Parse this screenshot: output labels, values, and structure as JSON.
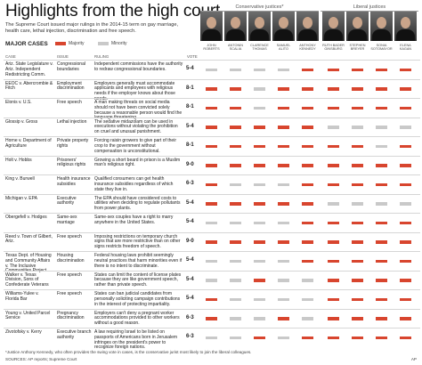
{
  "title": "Highlights from the high court",
  "subtitle": "The Supreme Court issued major rulings in the 2014-15 term on gay marriage, health care, lethal injection, discrimination and free speech.",
  "justices": {
    "conservative_label": "Conservative justices*",
    "liberal_label": "Liberal justices",
    "names": [
      "JOHN ROBERTS",
      "ANTONIN SCALIA",
      "CLARENCE THOMAS",
      "SAMUEL ALITO",
      "ANTHONY KENNEDY",
      "RUTH BADER GINSBURG",
      "STEPHEN BREYER",
      "SONIA SOTOMAYOR",
      "ELENA KAGAN"
    ]
  },
  "legend": {
    "heading": "MAJOR CASES",
    "items": [
      {
        "label": "Majority",
        "color": "#d8452e"
      },
      {
        "label": "Minority",
        "color": "#c9c9c9"
      }
    ]
  },
  "columns": [
    "CASE",
    "ISSUE",
    "RULING",
    "VOTE"
  ],
  "cases": [
    {
      "case": "Ariz. State Legislature v. Ariz. Independent Redistricting Comm.",
      "issue": "Congressional boundaries",
      "ruling": "Independent commissions have the authority to redraw congressional boundaries.",
      "vote": "5-4",
      "votes": [
        "Minority",
        "Minority",
        "Minority",
        "Minority",
        "Majority",
        "Majority",
        "Majority",
        "Majority",
        "Majority"
      ]
    },
    {
      "case": "EEOC v. Abercrombie & Fitch",
      "issue": "Employment discrimination",
      "ruling": "Employers generally must accommodate applicants and employees with religious needs if the employer knows about those needs.",
      "vote": "8-1",
      "votes": [
        "Majority",
        "Majority",
        "Minority",
        "Majority",
        "Majority",
        "Majority",
        "Majority",
        "Majority",
        "Majority"
      ]
    },
    {
      "case": "Elonis v. U.S.",
      "issue": "Free speech",
      "ruling": "A man making threats on social media should not have been convicted solely because a reasonable person would find the language threatening.",
      "vote": "8-1",
      "votes": [
        "Majority",
        "Majority",
        "Minority",
        "Majority",
        "Majority",
        "Majority",
        "Majority",
        "Majority",
        "Majority"
      ]
    },
    {
      "case": "Glossip v. Gross",
      "issue": "Lethal injection",
      "ruling": "The sedative midazolam can be used in executions without violating the prohibition on cruel and unusual punishment.",
      "vote": "5-4",
      "votes": [
        "Majority",
        "Majority",
        "Majority",
        "Majority",
        "Majority",
        "Minority",
        "Minority",
        "Minority",
        "Minority"
      ]
    },
    {
      "case": "Horne v. Department of Agriculture",
      "issue": "Private property rights",
      "ruling": "Forcing raisin growers to give part of their crop to the government without compensation is unconstitutional.",
      "vote": "8-1",
      "votes": [
        "Majority",
        "Majority",
        "Majority",
        "Majority",
        "Majority",
        "Majority",
        "Majority",
        "Minority",
        "Majority"
      ]
    },
    {
      "case": "Holt v. Hobbs",
      "issue": "Prisoners' religious rights",
      "ruling": "Growing a short beard in prison is a Muslim man's religious right.",
      "vote": "9-0",
      "votes": [
        "Majority",
        "Majority",
        "Majority",
        "Majority",
        "Majority",
        "Majority",
        "Majority",
        "Majority",
        "Majority"
      ]
    },
    {
      "case": "King v. Burwell",
      "issue": "Health insurance subsidies",
      "ruling": "Qualified consumers can get health insurance subsidies regardless of which state they live in.",
      "vote": "6-3",
      "votes": [
        "Majority",
        "Minority",
        "Minority",
        "Minority",
        "Majority",
        "Majority",
        "Majority",
        "Majority",
        "Majority"
      ]
    },
    {
      "case": "Michigan v. EPA",
      "issue": "Executive authority",
      "ruling": "The EPA should have considered costs to utilities when deciding to regulate pollutants from power plants.",
      "vote": "5-4",
      "votes": [
        "Majority",
        "Majority",
        "Majority",
        "Majority",
        "Majority",
        "Minority",
        "Minority",
        "Minority",
        "Minority"
      ]
    },
    {
      "case": "Obergefell v. Hodges",
      "issue": "Same-sex marriage",
      "ruling": "Same-sex couples have a right to marry anywhere in the United States.",
      "vote": "5-4",
      "votes": [
        "Minority",
        "Minority",
        "Minority",
        "Minority",
        "Majority",
        "Majority",
        "Majority",
        "Majority",
        "Majority"
      ]
    },
    {
      "case": "Reed v. Town of Gilbert, Ariz.",
      "issue": "Free speech",
      "ruling": "Imposing restrictions on temporary church signs that are more restrictive than on other signs restricts freedom of speech.",
      "vote": "9-0",
      "votes": [
        "Majority",
        "Majority",
        "Majority",
        "Majority",
        "Majority",
        "Majority",
        "Majority",
        "Majority",
        "Majority"
      ]
    },
    {
      "case": "Texas Dept. of Housing and Community Affairs v. The Inclusive Communities Project",
      "issue": "Housing discrimination",
      "ruling": "Federal housing laws prohibit seemingly neutral practices that harm minorities even if there is no intent to discriminate.",
      "vote": "5-4",
      "votes": [
        "Minority",
        "Minority",
        "Minority",
        "Minority",
        "Majority",
        "Majority",
        "Majority",
        "Majority",
        "Majority"
      ]
    },
    {
      "case": "Walker v. Texas Division, Sons of Confederate Veterans",
      "issue": "Free speech",
      "ruling": "States can limit the content of license plates because they are like government speech, rather than private speech.",
      "vote": "5-4",
      "votes": [
        "Minority",
        "Minority",
        "Majority",
        "Minority",
        "Minority",
        "Majority",
        "Majority",
        "Majority",
        "Majority"
      ]
    },
    {
      "case": "Williams-Yulee v. Florida Bar",
      "issue": "Free speech",
      "ruling": "States can ban judicial candidates from personally soliciting campaign contributions in the interest of protecting impartiality.",
      "vote": "5-4",
      "votes": [
        "Majority",
        "Minority",
        "Minority",
        "Minority",
        "Minority",
        "Majority",
        "Majority",
        "Majority",
        "Majority"
      ]
    },
    {
      "case": "Young v. United Parcel Service",
      "issue": "Pregnancy discrimination",
      "ruling": "Employers can't deny a pregnant worker accommodations provided to other workers without a good reason.",
      "vote": "6-3",
      "votes": [
        "Majority",
        "Minority",
        "Minority",
        "Majority",
        "Minority",
        "Majority",
        "Majority",
        "Majority",
        "Majority"
      ]
    },
    {
      "case": "Zivotofsky v. Kerry",
      "issue": "Executive branch authority",
      "ruling": "A law requiring Israel to be listed on passports of Americans born in Jerusalem infringes on the president's power to recognize foreign nations.",
      "vote": "6-3",
      "votes": [
        "Minority",
        "Minority",
        "Majority",
        "Minority",
        "Majority",
        "Majority",
        "Majority",
        "Majority",
        "Majority"
      ]
    }
  ],
  "footnote": "*Justice Anthony Kennedy, who often provides the swing vote in cases, is the conservative jurist most likely to join the liberal colleagues.",
  "source": "SOURCES: AP reports; Supreme Court",
  "credit": "AP"
}
